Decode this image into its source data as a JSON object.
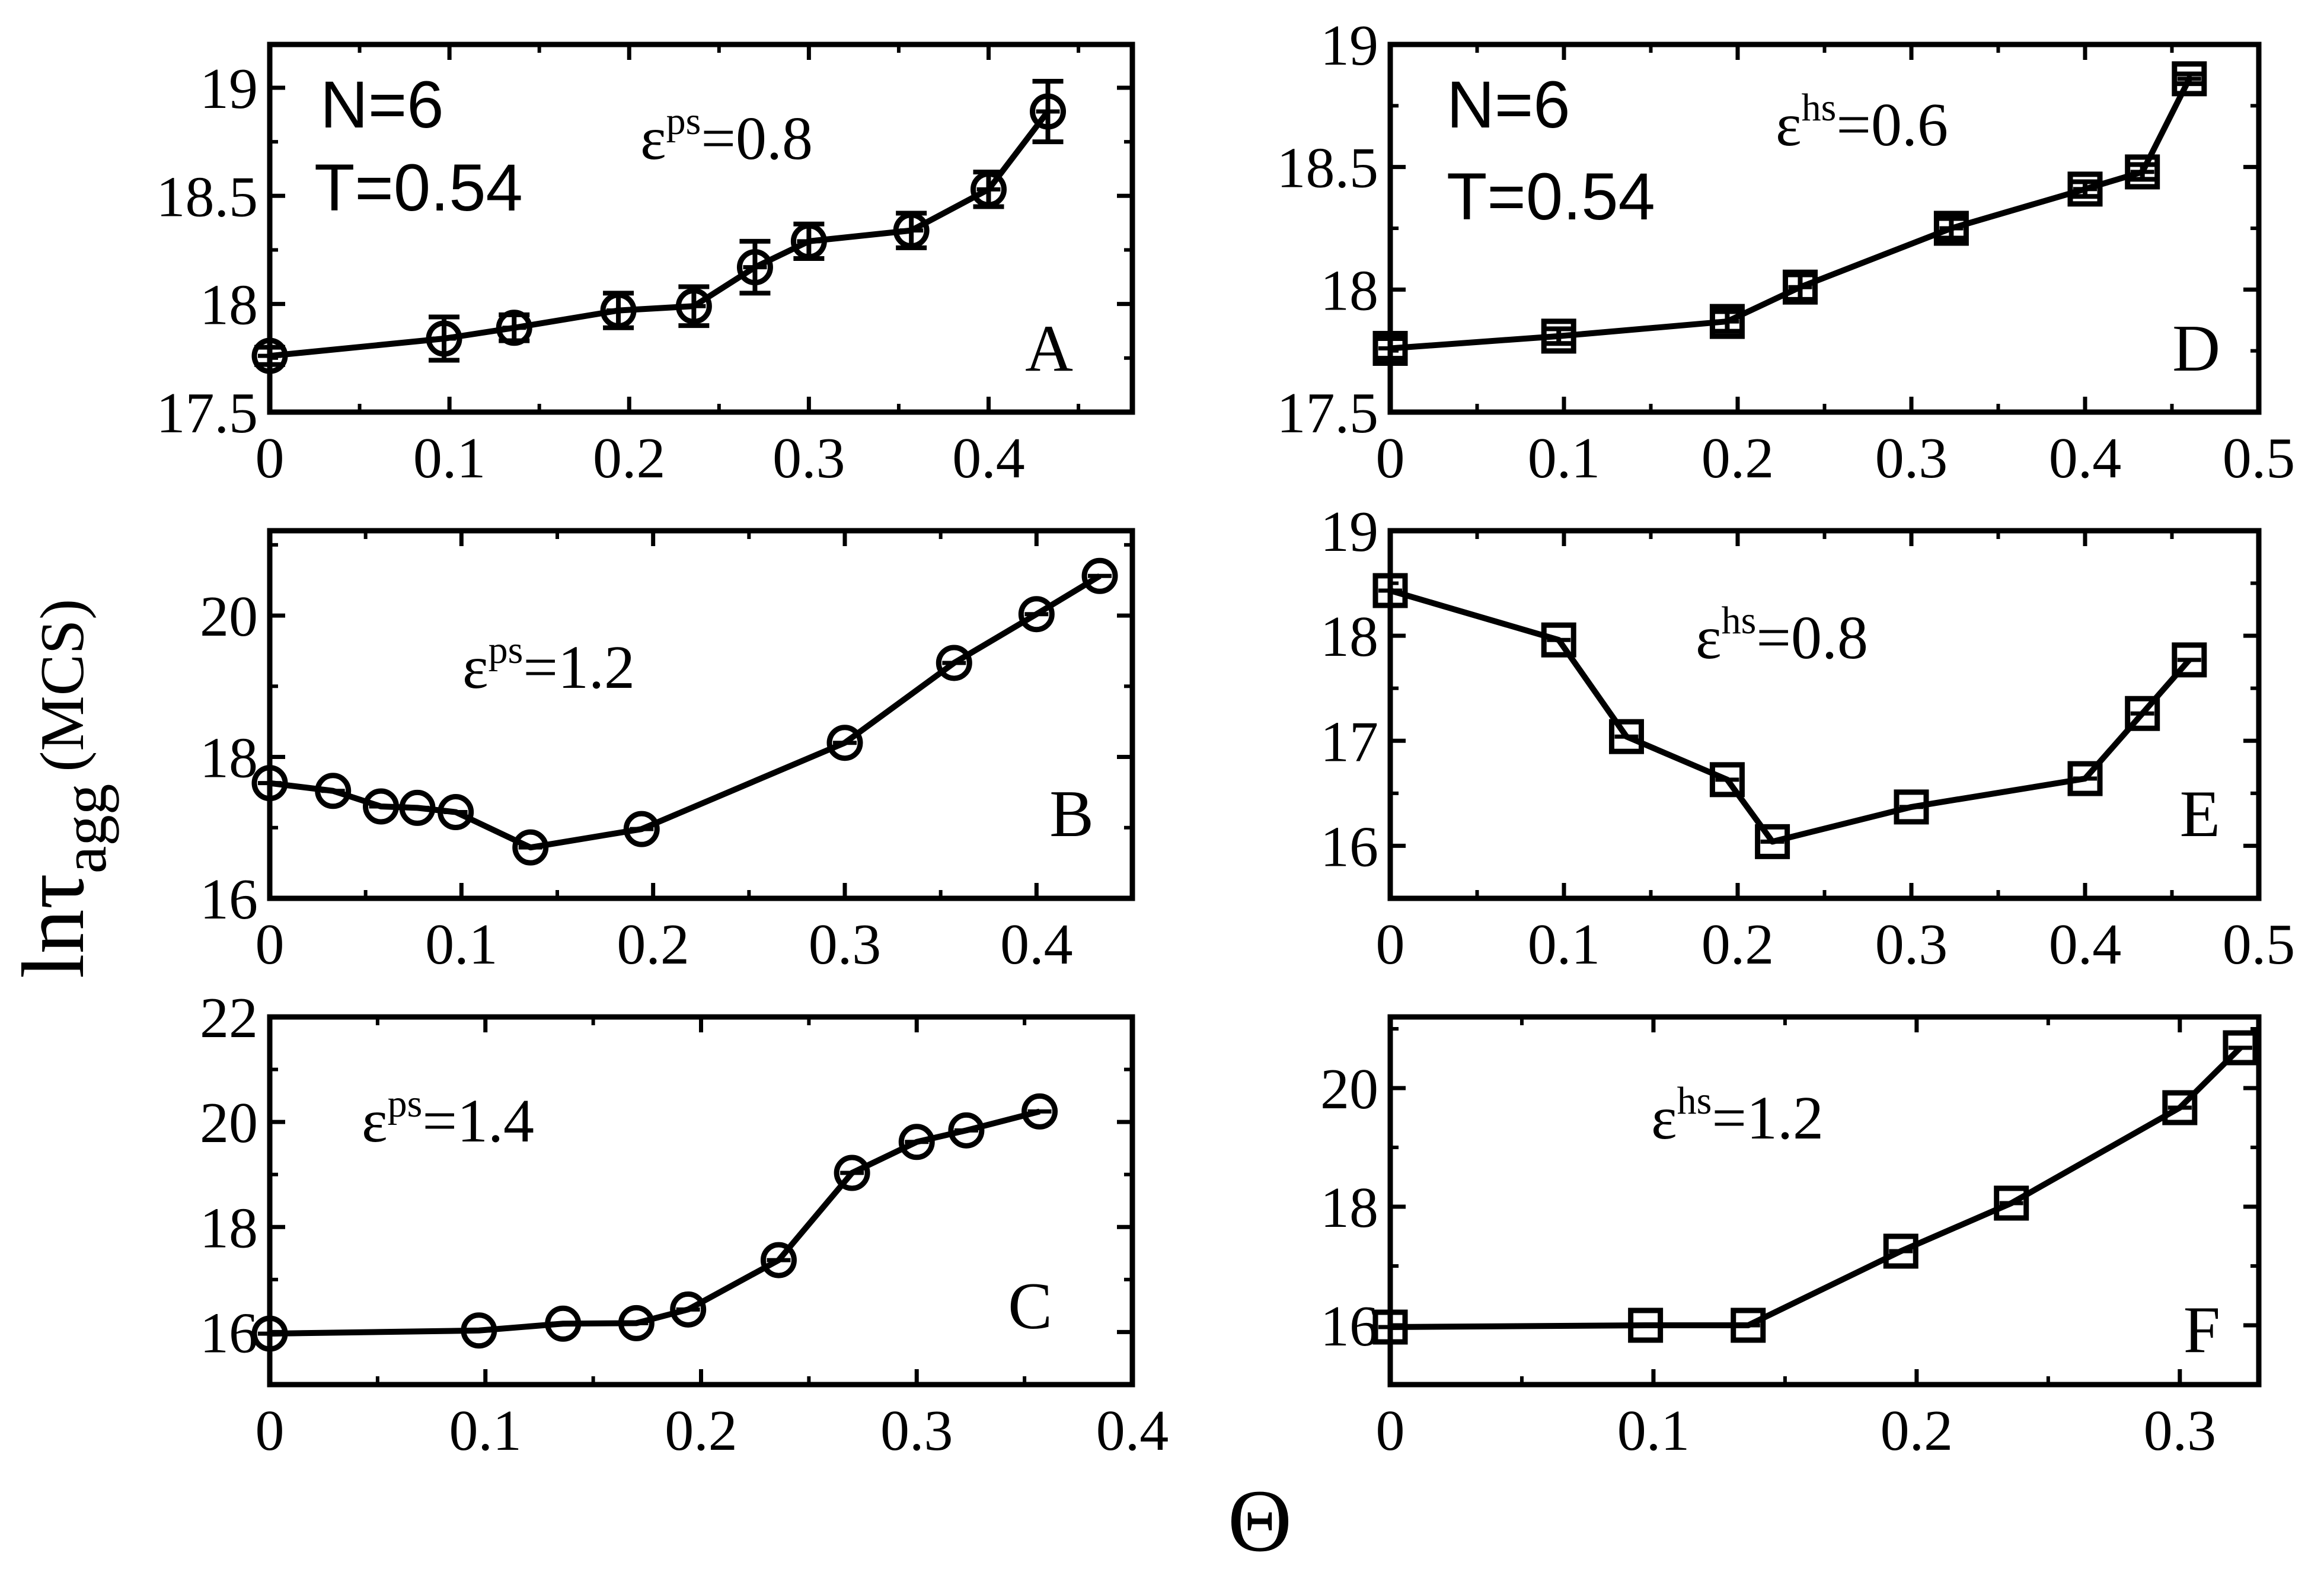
{
  "figure": {
    "ylabel": {
      "main": "lnτ",
      "sub": "agg",
      "unit": "(MCS)"
    },
    "xlabel": "Θ"
  },
  "chart_data": [
    {
      "id": "A",
      "type": "line",
      "marker": "circle",
      "error_bars": true,
      "annotation": {
        "N": "N=6",
        "T": "T=0.54"
      },
      "param": {
        "symbol": "ε",
        "sup": "ps",
        "value": "=0.8"
      },
      "xlim": [
        0,
        0.48
      ],
      "ylim": [
        17.5,
        19.2
      ],
      "xticks": [
        0,
        0.1,
        0.2,
        0.3,
        0.4
      ],
      "xtick_labels": [
        "0",
        "0.1",
        "0.2",
        "0.3",
        "0.4"
      ],
      "yticks": [
        17.5,
        18,
        18.5,
        19
      ],
      "ytick_labels": [
        "17.5",
        "18",
        "18.5",
        "19"
      ],
      "x": [
        0,
        0.097,
        0.136,
        0.194,
        0.236,
        0.27,
        0.3,
        0.357,
        0.4,
        0.433
      ],
      "y": [
        17.76,
        17.84,
        17.89,
        17.97,
        17.99,
        18.17,
        18.29,
        18.34,
        18.53,
        18.89
      ],
      "yerr": [
        0.04,
        0.1,
        0.06,
        0.08,
        0.09,
        0.12,
        0.08,
        0.08,
        0.08,
        0.14
      ]
    },
    {
      "id": "B",
      "type": "line",
      "marker": "circle",
      "error_bars": false,
      "param": {
        "symbol": "ε",
        "sup": "ps",
        "value": "=1.2"
      },
      "xlim": [
        0,
        0.45
      ],
      "ylim": [
        16,
        21.2
      ],
      "xticks": [
        0,
        0.1,
        0.2,
        0.3,
        0.4
      ],
      "xtick_labels": [
        "0",
        "0.1",
        "0.2",
        "0.3",
        "0.4"
      ],
      "yticks": [
        16,
        18,
        20
      ],
      "ytick_labels": [
        "16",
        "18",
        "20"
      ],
      "x": [
        0,
        0.033,
        0.058,
        0.077,
        0.097,
        0.136,
        0.194,
        0.3,
        0.357,
        0.4,
        0.433
      ],
      "y": [
        17.63,
        17.52,
        17.3,
        17.28,
        17.22,
        16.72,
        16.98,
        18.2,
        19.33,
        20.02,
        20.56
      ]
    },
    {
      "id": "C",
      "type": "line",
      "marker": "circle",
      "error_bars": false,
      "param": {
        "symbol": "ε",
        "sup": "ps",
        "value": "=1.4"
      },
      "xlim": [
        0,
        0.4
      ],
      "ylim": [
        15,
        22
      ],
      "xticks": [
        0,
        0.1,
        0.2,
        0.3,
        0.4
      ],
      "xtick_labels": [
        "0",
        "0.1",
        "0.2",
        "0.3",
        "0.4"
      ],
      "yticks": [
        16,
        18,
        20,
        22
      ],
      "ytick_labels": [
        "16",
        "18",
        "20",
        "22"
      ],
      "x": [
        0,
        0.097,
        0.136,
        0.17,
        0.194,
        0.236,
        0.27,
        0.3,
        0.323,
        0.357
      ],
      "y": [
        15.97,
        16.03,
        16.16,
        16.17,
        16.43,
        17.37,
        19.03,
        19.62,
        19.84,
        20.2
      ]
    },
    {
      "id": "D",
      "type": "line",
      "marker": "square",
      "error_bars": true,
      "annotation": {
        "N": "N=6",
        "T": "T=0.54"
      },
      "param": {
        "symbol": "ε",
        "sup": "hs",
        "value": "=0.6"
      },
      "xlim": [
        0,
        0.5
      ],
      "ylim": [
        17.5,
        19
      ],
      "xticks": [
        0,
        0.1,
        0.2,
        0.3,
        0.4,
        0.5
      ],
      "xtick_labels": [
        "0",
        "0.1",
        "0.2",
        "0.3",
        "0.4",
        "0.5"
      ],
      "yticks": [
        17.5,
        18,
        18.5,
        19
      ],
      "ytick_labels": [
        "17.5",
        "18",
        "18.5",
        "19"
      ],
      "x": [
        0,
        0.097,
        0.194,
        0.236,
        0.323,
        0.4,
        0.433,
        0.46
      ],
      "y": [
        17.76,
        17.81,
        17.87,
        18.01,
        18.25,
        18.41,
        18.48,
        18.86
      ],
      "yerr": [
        0.04,
        0.03,
        0.04,
        0.05,
        0.04,
        0.03,
        0.03,
        0.02
      ]
    },
    {
      "id": "E",
      "type": "line",
      "marker": "square",
      "error_bars": false,
      "param": {
        "symbol": "ε",
        "sup": "hs",
        "value": "=0.8"
      },
      "xlim": [
        0,
        0.5
      ],
      "ylim": [
        15.5,
        19
      ],
      "xticks": [
        0,
        0.1,
        0.2,
        0.3,
        0.4,
        0.5
      ],
      "xtick_labels": [
        "0",
        "0.1",
        "0.2",
        "0.3",
        "0.4",
        "0.5"
      ],
      "yticks": [
        16,
        17,
        18,
        19
      ],
      "ytick_labels": [
        "16",
        "17",
        "18",
        "19"
      ],
      "x": [
        0,
        0.097,
        0.136,
        0.194,
        0.22,
        0.3,
        0.4,
        0.433,
        0.46
      ],
      "y": [
        18.43,
        17.96,
        17.04,
        16.63,
        16.04,
        16.37,
        16.64,
        17.26,
        17.77
      ]
    },
    {
      "id": "F",
      "type": "line",
      "marker": "square",
      "error_bars": false,
      "param": {
        "symbol": "ε",
        "sup": "hs",
        "value": "=1.2"
      },
      "xlim": [
        0,
        0.33
      ],
      "ylim": [
        15,
        21.2
      ],
      "xticks": [
        0,
        0.1,
        0.2,
        0.3
      ],
      "xtick_labels": [
        "0",
        "0.1",
        "0.2",
        "0.3"
      ],
      "yticks": [
        16,
        18,
        20
      ],
      "ytick_labels": [
        "16",
        "18",
        "20"
      ],
      "x": [
        0,
        0.097,
        0.136,
        0.194,
        0.236,
        0.3,
        0.323
      ],
      "y": [
        15.97,
        16.0,
        16.0,
        17.25,
        18.06,
        19.67,
        20.68
      ]
    }
  ]
}
